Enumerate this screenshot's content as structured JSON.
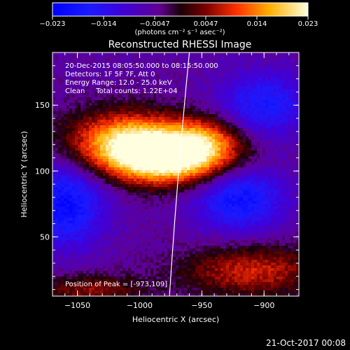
{
  "chart_data": {
    "type": "heatmap",
    "title": "Reconstructed RHESSI Image",
    "xlabel": "Heliocentric X (arcsec)",
    "ylabel": "Heliocentric Y (arcsec)",
    "xlim": [
      -1070,
      -872
    ],
    "ylim": [
      5,
      190
    ],
    "x_ticks": [
      {
        "value": -1050,
        "label": "−1050"
      },
      {
        "value": -1000,
        "label": "−1000"
      },
      {
        "value": -950,
        "label": "−950"
      },
      {
        "value": -900,
        "label": "−900"
      }
    ],
    "y_ticks": [
      {
        "value": 50,
        "label": "50"
      },
      {
        "value": 100,
        "label": "100"
      },
      {
        "value": 150,
        "label": "150"
      }
    ],
    "colorbar": {
      "min": -0.023,
      "max": 0.023,
      "tick_labels": [
        "−0.023",
        "−0.014",
        "−0.0047",
        "0.0047",
        "0.014",
        "0.023"
      ],
      "unit_label": "(photons cm⁻² s⁻¹ asec⁻²)"
    },
    "annotations": [
      "20-Dec-2015 08:05:50.000 to 08:15:50.000",
      "Detectors: 1F 5F 7F, Att 0",
      "Energy Range: 12.0 - 25.0 keV",
      "Clean     Total counts: 1.22E+04"
    ],
    "peak_label": "Position of Peak = [-973,109]",
    "peak": {
      "x": -973,
      "y": 109
    },
    "limb": {
      "x_top": -960,
      "x_bottom": -976
    },
    "grid": false,
    "footer_date": "21-Oct-2017 00:08",
    "sources": [
      {
        "x": -975,
        "y": 110,
        "amp": 0.031,
        "sx": 36,
        "sy": 14
      },
      {
        "x": -1010,
        "y": 124,
        "amp": 0.02,
        "sx": 34,
        "sy": 16
      },
      {
        "x": -945,
        "y": 126,
        "amp": 0.01,
        "sx": 20,
        "sy": 12
      },
      {
        "x": -910,
        "y": 24,
        "amp": 0.013,
        "sx": 40,
        "sy": 14
      },
      {
        "x": -1040,
        "y": 10,
        "amp": 0.01,
        "sx": 30,
        "sy": 8
      },
      {
        "x": -1060,
        "y": 75,
        "amp": -0.016,
        "sx": 22,
        "sy": 22
      },
      {
        "x": -920,
        "y": 80,
        "amp": -0.015,
        "sx": 25,
        "sy": 18
      },
      {
        "x": -900,
        "y": 150,
        "amp": -0.012,
        "sx": 25,
        "sy": 18
      }
    ],
    "base_level": -0.005
  }
}
